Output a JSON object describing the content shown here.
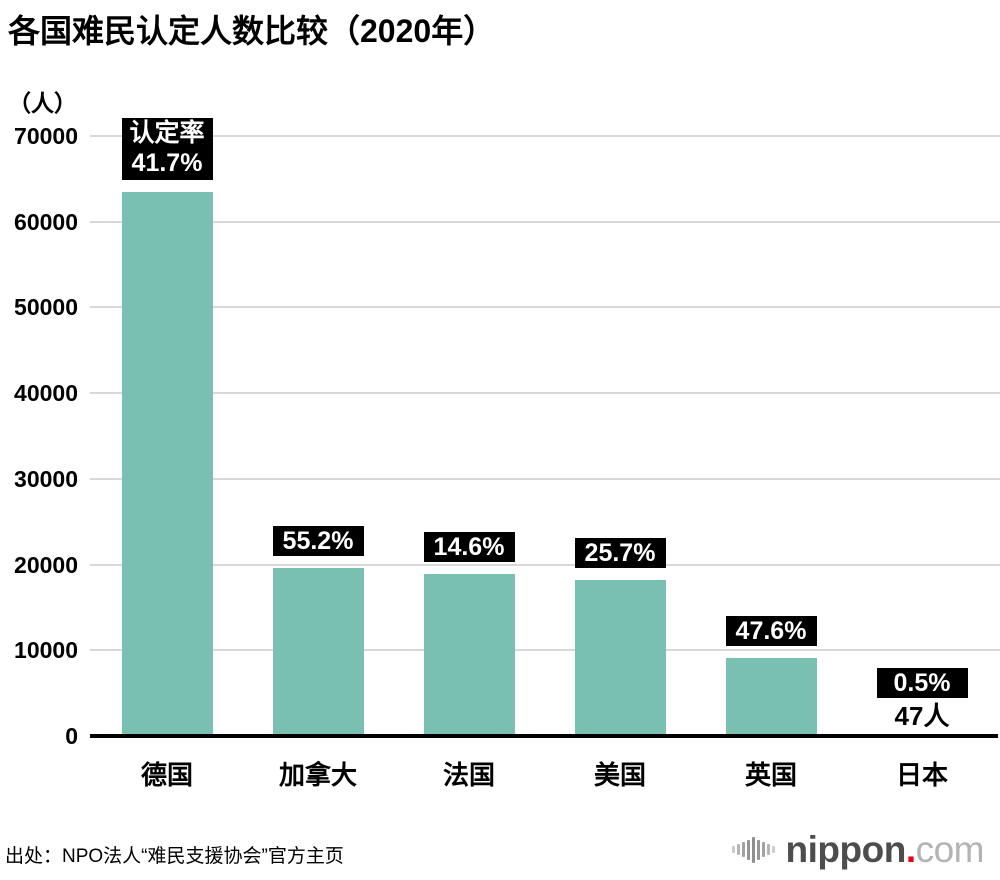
{
  "chart_data": {
    "type": "bar",
    "title": "各国难民认定人数比较（2020年）",
    "unit_label": "（人）",
    "categories": [
      "德国",
      "加拿大",
      "法国",
      "美国",
      "英国",
      "日本"
    ],
    "values": [
      63456,
      19596,
      18868,
      18177,
      9108,
      47
    ],
    "rate_prefix": "认定率",
    "rates": [
      "41.7%",
      "55.2%",
      "14.6%",
      "25.7%",
      "47.6%",
      "0.5%"
    ],
    "value_labels": [
      "",
      "",
      "",
      "",
      "",
      "47人"
    ],
    "y_ticks": [
      0,
      10000,
      20000,
      30000,
      40000,
      50000,
      60000,
      70000
    ],
    "ylim": [
      0,
      70000
    ],
    "xlabel": "",
    "ylabel": "（人）",
    "grid": true,
    "legend": "none",
    "bar_color": "#7ac0b2",
    "rate_box_bg": "#000000",
    "rate_box_text": "#ffffff",
    "grid_color": "#d8d8d8",
    "axis_color": "#000000"
  },
  "source_note": "出处：NPO法人“难民支援协会”官方主页",
  "logo": {
    "icon": "soundwave-icon",
    "brand": "nippon",
    "separator": ".",
    "tld": "com",
    "brand_color": "#4d4d4d",
    "dot_color": "#e60012",
    "tld_color": "#b3b3b3",
    "icon_color": "#a3a3a3"
  }
}
